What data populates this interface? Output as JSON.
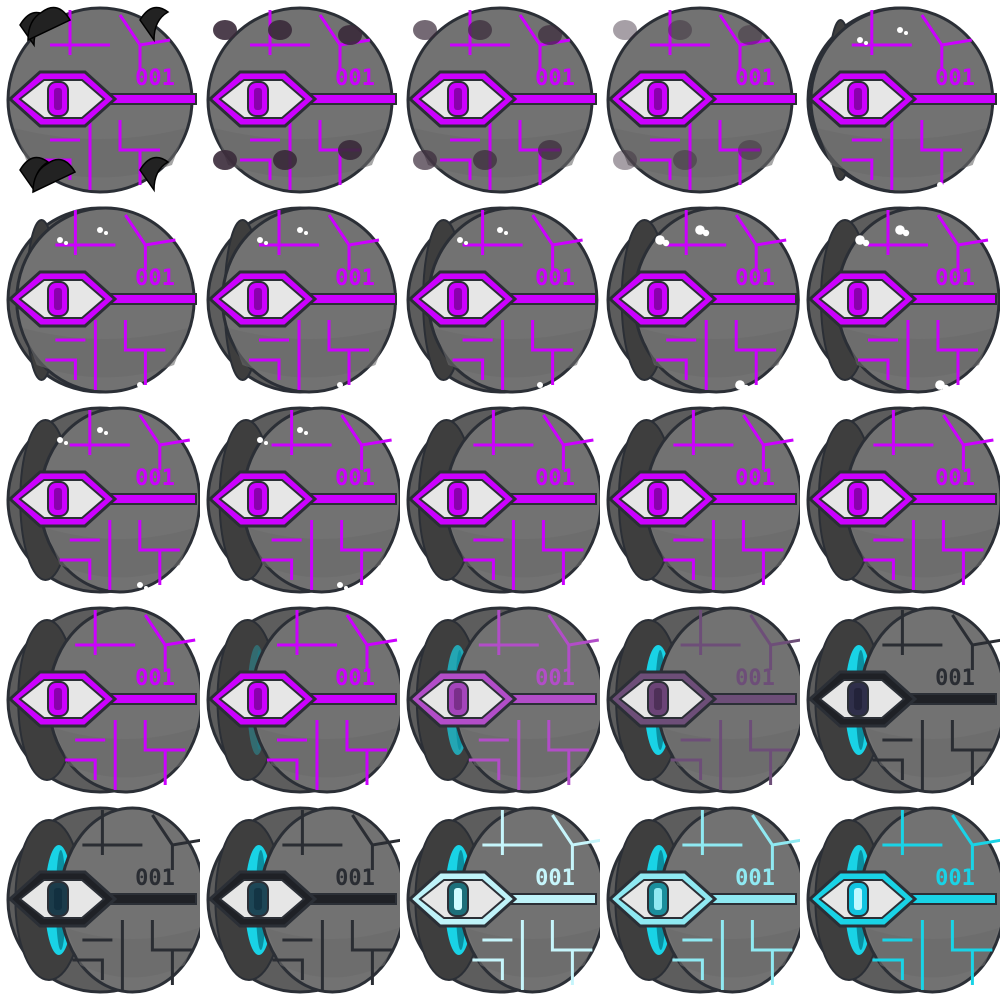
{
  "sheet": {
    "label": "001",
    "columns": 5,
    "rows": 5
  },
  "palette": {
    "body": "#727272",
    "body_dark": "#5d5d5d",
    "outline": "#2b2f36",
    "magenta": "#cc00ff",
    "magenta_dark": "#8a00ad",
    "cyan": "#19d3e6",
    "cyan_light": "#c6f5fb",
    "dark_line": "#2a2d33",
    "eye_white": "#e6e6e6",
    "blade": "#222222"
  },
  "frames": [
    {
      "accent": "magenta",
      "open": 0.0,
      "splash": "blades"
    },
    {
      "accent": "magenta",
      "open": 0.0,
      "splash": "smear-heavy"
    },
    {
      "accent": "magenta",
      "open": 0.0,
      "splash": "smear-mid"
    },
    {
      "accent": "magenta",
      "open": 0.0,
      "splash": "smear-light"
    },
    {
      "accent": "magenta",
      "open": 0.05,
      "splash": "white-fleck"
    },
    {
      "accent": "magenta",
      "open": 0.15,
      "splash": "white-fleck"
    },
    {
      "accent": "magenta",
      "open": 0.25,
      "splash": "white-fleck"
    },
    {
      "accent": "magenta",
      "open": 0.35,
      "splash": "white-fleck"
    },
    {
      "accent": "magenta",
      "open": 0.45,
      "splash": "white-splash"
    },
    {
      "accent": "magenta",
      "open": 0.5,
      "splash": "white-splash"
    },
    {
      "accent": "magenta",
      "open": 0.55,
      "splash": "white-fleck"
    },
    {
      "accent": "magenta",
      "open": 0.6,
      "splash": "white-fleck"
    },
    {
      "accent": "magenta",
      "open": 0.65,
      "splash": "none"
    },
    {
      "accent": "magenta",
      "open": 0.65,
      "splash": "none"
    },
    {
      "accent": "magenta",
      "open": 0.65,
      "splash": "none"
    },
    {
      "accent": "magenta",
      "open": 0.7,
      "splash": "none"
    },
    {
      "accent": "magenta",
      "open": 0.75,
      "splash": "none",
      "glow": 0.3
    },
    {
      "accent": "magenta-fade",
      "open": 0.8,
      "splash": "none",
      "glow": 0.7
    },
    {
      "accent": "purple-fade",
      "open": 0.85,
      "splash": "none",
      "glow": 1.0
    },
    {
      "accent": "dark",
      "open": 0.9,
      "splash": "none",
      "glow": 1.0
    },
    {
      "accent": "dark-cyan",
      "open": 0.9,
      "splash": "none",
      "glow": 1.0
    },
    {
      "accent": "dark-cyan2",
      "open": 0.9,
      "splash": "none",
      "glow": 1.0
    },
    {
      "accent": "cyan-light",
      "open": 0.9,
      "splash": "none",
      "glow": 1.0
    },
    {
      "accent": "cyan-mid",
      "open": 0.9,
      "splash": "none",
      "glow": 1.0
    },
    {
      "accent": "cyan",
      "open": 0.9,
      "splash": "none",
      "glow": 1.0
    }
  ],
  "accents": {
    "magenta": {
      "line": "#cc00ff",
      "eye_ring": "#cc00ff",
      "pupil": "#cc00ff",
      "pupil_inner": "#8a00ad",
      "text": "#cc00ff"
    },
    "magenta-fade": {
      "line": "#b24dc8",
      "eye_ring": "#b24dc8",
      "pupil": "#a445bb",
      "pupil_inner": "#7a2f8a",
      "text": "#b24dc8"
    },
    "purple-fade": {
      "line": "#6d4e78",
      "eye_ring": "#6d4e78",
      "pupil": "#6b4477",
      "pupil_inner": "#4e3058",
      "text": "#6d4e78"
    },
    "dark": {
      "line": "#2a2d33",
      "eye_ring": "#1f2126",
      "pupil": "#2f2f4a",
      "pupil_inner": "#23233a",
      "text": "#2a2d33"
    },
    "dark-cyan": {
      "line": "#2a2d33",
      "eye_ring": "#1f2126",
      "pupil": "#1b3b4a",
      "pupil_inner": "#123040",
      "text": "#2a2d33"
    },
    "dark-cyan2": {
      "line": "#2a2d33",
      "eye_ring": "#1f2126",
      "pupil": "#1d4656",
      "pupil_inner": "#133545",
      "text": "#2a2d33"
    },
    "cyan-light": {
      "line": "#c6f5fb",
      "eye_ring": "#bff3f9",
      "pupil": "#1d6f7a",
      "pupil_inner": "#d0fbff",
      "text": "#c6f5fb"
    },
    "cyan-mid": {
      "line": "#8fe9f2",
      "eye_ring": "#8fe9f2",
      "pupil": "#1b8e9c",
      "pupil_inner": "#8fe9f2",
      "text": "#8fe9f2"
    },
    "cyan": {
      "line": "#19d3e6",
      "eye_ring": "#19d3e6",
      "pupil": "#12c4e0",
      "pupil_inner": "#bff8ff",
      "text": "#19d3e6"
    }
  }
}
